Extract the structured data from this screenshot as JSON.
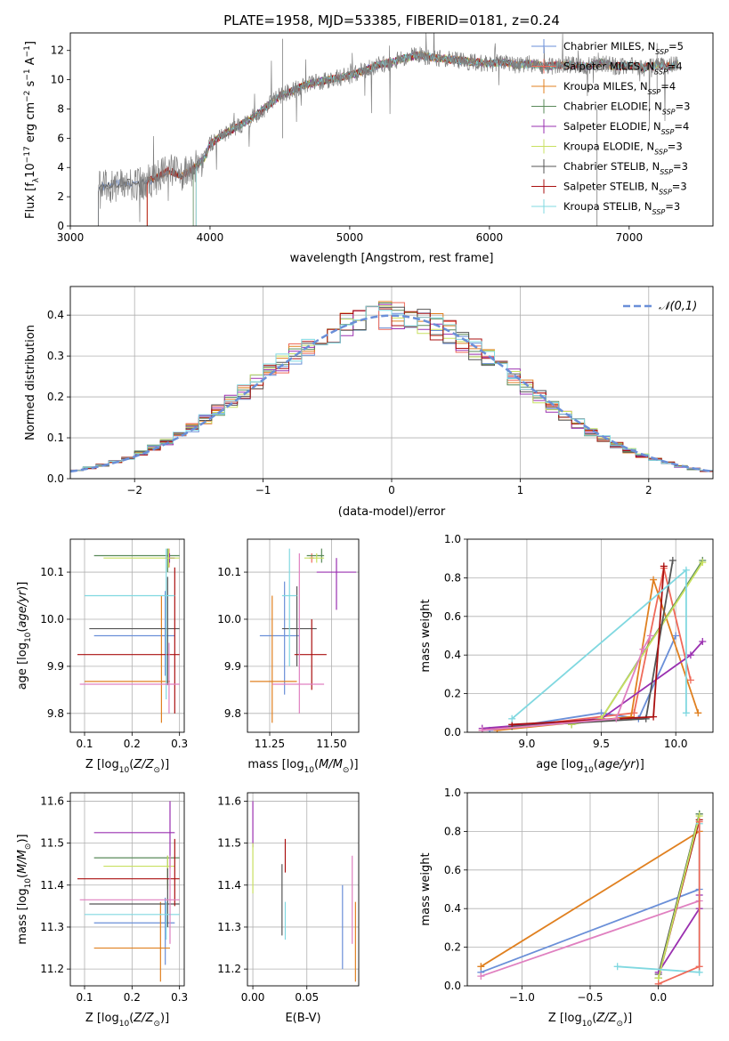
{
  "figure": {
    "title": "PLATE=1958, MJD=53385, FIBERID=0181, z=0.24"
  },
  "colors": {
    "chabrier_miles": "#6a8fd8",
    "salpeter_miles": "#ef6a5a",
    "kroupa_miles": "#e08020",
    "chabrier_elodie": "#5a8a5a",
    "salpeter_elodie": "#9a30b0",
    "kroupa_elodie": "#c8e060",
    "chabrier_stelib": "#555555",
    "salpeter_stelib": "#aa1010",
    "kroupa_stelib": "#80d8e0",
    "pink": "#e080c0",
    "data": "#808080"
  },
  "chart_data": [
    {
      "id": "spectrum",
      "type": "line",
      "xlabel": "wavelength [Angstrom, rest frame]",
      "ylabel": "Flux [f_λ 10^-17 erg cm^-2 s^-1 A^-1]",
      "xlim": [
        3000,
        7600
      ],
      "ylim": [
        0,
        13.2
      ],
      "xticks": [
        "3000",
        "4000",
        "5000",
        "6000",
        "7000"
      ],
      "yticks": [
        "0",
        "2",
        "4",
        "6",
        "8",
        "10",
        "12"
      ],
      "legend_placement": "right",
      "legend": [
        {
          "label": "Chabrier MILES, N",
          "sub": "SSP",
          "tail": "=5",
          "color_key": "chabrier_miles"
        },
        {
          "label": "Salpeter MILES, N",
          "sub": "SSP",
          "tail": "=4",
          "color_key": "salpeter_miles"
        },
        {
          "label": "Kroupa MILES, N",
          "sub": "SSP",
          "tail": "=4",
          "color_key": "kroupa_miles"
        },
        {
          "label": "Chabrier ELODIE, N",
          "sub": "SSP",
          "tail": "=3",
          "color_key": "chabrier_elodie"
        },
        {
          "label": "Salpeter ELODIE, N",
          "sub": "SSP",
          "tail": "=4",
          "color_key": "salpeter_elodie"
        },
        {
          "label": "Kroupa ELODIE, N",
          "sub": "SSP",
          "tail": "=3",
          "color_key": "kroupa_elodie"
        },
        {
          "label": "Chabrier STELIB, N",
          "sub": "SSP",
          "tail": "=3",
          "color_key": "chabrier_stelib"
        },
        {
          "label": "Salpeter STELIB, N",
          "sub": "SSP",
          "tail": "=3",
          "color_key": "salpeter_stelib"
        },
        {
          "label": "Kroupa STELIB, N",
          "sub": "SSP",
          "tail": "=3",
          "color_key": "kroupa_stelib"
        }
      ],
      "continuum": {
        "x": [
          3200,
          3300,
          3400,
          3500,
          3600,
          3700,
          3800,
          3900,
          3960,
          4000,
          4100,
          4200,
          4300,
          4400,
          4500,
          4600,
          4700,
          4800,
          4900,
          5000,
          5100,
          5200,
          5300,
          5400,
          5500,
          5600,
          5700,
          5800,
          5900,
          6000,
          6100,
          6200,
          6300,
          6400,
          6500,
          6600,
          6700,
          6800,
          6900,
          7000,
          7100,
          7200,
          7300,
          7350
        ],
        "y": [
          2.6,
          2.8,
          3.0,
          2.9,
          3.2,
          3.8,
          3.4,
          4.1,
          4.6,
          5.6,
          6.3,
          6.8,
          7.4,
          8.1,
          8.9,
          9.3,
          9.7,
          9.9,
          10.1,
          10.3,
          10.6,
          11.0,
          11.2,
          11.5,
          11.7,
          11.5,
          11.4,
          11.3,
          11.2,
          11.1,
          11.2,
          11.0,
          11.1,
          10.9,
          11.0,
          11.0,
          10.9,
          11.2,
          10.9,
          11.0,
          10.8,
          11.0,
          10.9,
          11.1
        ]
      },
      "model_starts": [
        3200,
        3550,
        3550,
        3880,
        3900,
        3900,
        3200,
        3550,
        3900
      ]
    },
    {
      "id": "residuals",
      "type": "line",
      "xlabel": "(data-model)/error",
      "ylabel": "Normed distribution",
      "xlim": [
        -2.5,
        2.5
      ],
      "ylim": [
        0,
        0.47
      ],
      "xticks": [
        "−2",
        "−1",
        "0",
        "1",
        "2"
      ],
      "yticks": [
        "0.0",
        "0.1",
        "0.2",
        "0.3",
        "0.4"
      ],
      "grid": true,
      "legend_placement": "top-right",
      "gaussian_label": "𝒩(0,1)",
      "gaussian_color": "#6a8fd8"
    },
    {
      "id": "age_vs_Z",
      "type": "scatter",
      "xlabel": "Z [log₁₀(Z/Z☉)]",
      "ylabel": "age  [log₁₀(age/yr)]",
      "xlim": [
        0.07,
        0.31
      ],
      "ylim": [
        9.76,
        10.17
      ],
      "xticks": [
        "0.1",
        "0.2",
        "0.3"
      ],
      "yticks": [
        "9.8",
        "9.9",
        "10.0",
        "10.1"
      ],
      "grid": true,
      "points": [
        {
          "c": "chabrier_miles",
          "x": 0.27,
          "xerr": [
            0.12,
            0.29
          ],
          "y": 9.965,
          "yerr": [
            9.88,
            10.06
          ]
        },
        {
          "c": "salpeter_miles",
          "x": 0.278,
          "xerr": [
            0.27,
            0.29
          ],
          "y": 10.13,
          "yerr": [
            10.11,
            10.15
          ]
        },
        {
          "c": "kroupa_miles",
          "x": 0.262,
          "xerr": [
            0.1,
            0.28
          ],
          "y": 9.868,
          "yerr": [
            9.78,
            10.05
          ]
        },
        {
          "c": "chabrier_elodie",
          "x": 0.275,
          "xerr": [
            0.12,
            0.3
          ],
          "y": 10.135,
          "yerr": [
            10.1,
            10.15
          ]
        },
        {
          "c": "salpeter_elodie",
          "x": 0.279,
          "xerr": [
            0.27,
            0.29
          ],
          "y": 10.13,
          "yerr": [
            10.12,
            10.14
          ]
        },
        {
          "c": "kroupa_elodie",
          "x": 0.277,
          "xerr": [
            0.14,
            0.3
          ],
          "y": 10.13,
          "yerr": [
            10.11,
            10.15
          ]
        },
        {
          "c": "chabrier_stelib",
          "x": 0.275,
          "xerr": [
            0.11,
            0.3
          ],
          "y": 9.98,
          "yerr": [
            9.86,
            10.09
          ]
        },
        {
          "c": "salpeter_stelib",
          "x": 0.29,
          "xerr": [
            0.085,
            0.3
          ],
          "y": 9.925,
          "yerr": [
            9.8,
            10.11
          ]
        },
        {
          "c": "kroupa_stelib",
          "x": 0.272,
          "xerr": [
            0.1,
            0.29
          ],
          "y": 10.05,
          "yerr": [
            9.83,
            10.15
          ]
        },
        {
          "c": "pink",
          "x": 0.278,
          "xerr": [
            0.09,
            0.3
          ],
          "y": 9.862,
          "yerr": [
            9.8,
            9.95
          ]
        }
      ]
    },
    {
      "id": "age_vs_mass",
      "type": "scatter",
      "xlabel": "mass [log₁₀(M/M☉)]",
      "ylabel": "",
      "xlim": [
        11.16,
        11.61
      ],
      "ylim": [
        9.76,
        10.17
      ],
      "xticks": [
        "11.25",
        "11.50"
      ],
      "yticks": [
        "9.8",
        "9.9",
        "10.0",
        "10.1"
      ],
      "grid": true,
      "points": [
        {
          "c": "chabrier_miles",
          "x": 11.31,
          "xerr": [
            11.21,
            11.37
          ],
          "y": 9.965,
          "yerr": [
            9.84,
            10.08
          ]
        },
        {
          "c": "salpeter_miles",
          "x": 11.42,
          "xerr": [
            11.41,
            11.43
          ],
          "y": 10.13,
          "yerr": [
            10.12,
            10.14
          ]
        },
        {
          "c": "kroupa_miles",
          "x": 11.26,
          "xerr": [
            11.17,
            11.36
          ],
          "y": 9.868,
          "yerr": [
            9.78,
            10.05
          ]
        },
        {
          "c": "chabrier_elodie",
          "x": 11.46,
          "xerr": [
            11.4,
            11.47
          ],
          "y": 10.135,
          "yerr": [
            10.12,
            10.15
          ]
        },
        {
          "c": "salpeter_elodie",
          "x": 11.52,
          "xerr": [
            11.44,
            11.6
          ],
          "y": 10.1,
          "yerr": [
            10.02,
            10.13
          ]
        },
        {
          "c": "kroupa_elodie",
          "x": 11.44,
          "xerr": [
            11.39,
            11.47
          ],
          "y": 10.13,
          "yerr": [
            10.12,
            10.14
          ]
        },
        {
          "c": "chabrier_stelib",
          "x": 11.36,
          "xerr": [
            11.3,
            11.44
          ],
          "y": 9.98,
          "yerr": [
            9.9,
            10.07
          ]
        },
        {
          "c": "salpeter_stelib",
          "x": 11.42,
          "xerr": [
            11.35,
            11.48
          ],
          "y": 9.925,
          "yerr": [
            9.85,
            10.0
          ]
        },
        {
          "c": "kroupa_stelib",
          "x": 11.33,
          "xerr": [
            11.3,
            11.36
          ],
          "y": 10.05,
          "yerr": [
            9.9,
            10.15
          ]
        },
        {
          "c": "pink",
          "x": 11.37,
          "xerr": [
            11.26,
            11.47
          ],
          "y": 9.862,
          "yerr": [
            9.8,
            10.14
          ]
        }
      ]
    },
    {
      "id": "weight_vs_age",
      "type": "line",
      "xlabel": "age  [log₁₀(age/yr)]",
      "ylabel": "mass weight",
      "xlim": [
        8.6,
        10.25
      ],
      "ylim": [
        0,
        1.0
      ],
      "xticks": [
        "9.0",
        "9.5",
        "10.0"
      ],
      "yticks": [
        "0.0",
        "0.2",
        "0.4",
        "0.6",
        "0.8",
        "1.0"
      ],
      "grid": true,
      "series": [
        {
          "c": "chabrier_miles",
          "x": [
            8.75,
            9.5,
            9.75,
            10.0
          ],
          "y": [
            0.01,
            0.1,
            0.07,
            0.5
          ]
        },
        {
          "c": "salpeter_miles",
          "x": [
            8.7,
            9.72,
            9.92,
            10.1
          ],
          "y": [
            0.01,
            0.1,
            0.85,
            0.27
          ]
        },
        {
          "c": "kroupa_miles",
          "x": [
            8.8,
            9.7,
            9.85,
            10.15
          ],
          "y": [
            0.01,
            0.08,
            0.79,
            0.1
          ]
        },
        {
          "c": "chabrier_elodie",
          "x": [
            9.3,
            9.5,
            10.18
          ],
          "y": [
            0.04,
            0.07,
            0.89
          ]
        },
        {
          "c": "salpeter_elodie",
          "x": [
            8.7,
            9.5,
            10.1,
            10.18
          ],
          "y": [
            0.02,
            0.07,
            0.4,
            0.47
          ]
        },
        {
          "c": "kroupa_elodie",
          "x": [
            9.3,
            9.5,
            10.18
          ],
          "y": [
            0.04,
            0.07,
            0.88
          ]
        },
        {
          "c": "chabrier_stelib",
          "x": [
            8.9,
            9.8,
            9.98
          ],
          "y": [
            0.03,
            0.07,
            0.89
          ]
        },
        {
          "c": "salpeter_stelib",
          "x": [
            8.9,
            9.85,
            9.92
          ],
          "y": [
            0.04,
            0.08,
            0.86
          ]
        },
        {
          "c": "kroupa_stelib",
          "x": [
            8.9,
            10.07,
            10.07
          ],
          "y": [
            0.07,
            0.84,
            0.1
          ]
        },
        {
          "c": "pink",
          "x": [
            8.7,
            9.6,
            9.78,
            9.83
          ],
          "y": [
            0.01,
            0.07,
            0.43,
            0.5
          ]
        }
      ]
    },
    {
      "id": "mass_vs_Z",
      "type": "scatter",
      "xlabel": "Z [log₁₀(Z/Z☉)]",
      "ylabel": "mass [log₁₀(M/M☉)]",
      "xlim": [
        0.07,
        0.31
      ],
      "ylim": [
        11.16,
        11.62
      ],
      "xticks": [
        "0.1",
        "0.2",
        "0.3"
      ],
      "yticks": [
        "11.2",
        "11.3",
        "11.4",
        "11.5",
        "11.6"
      ],
      "grid": true,
      "points": [
        {
          "c": "chabrier_miles",
          "x": 0.27,
          "xerr": [
            0.12,
            0.29
          ],
          "y": 11.31,
          "yerr": [
            11.21,
            11.37
          ]
        },
        {
          "c": "kroupa_miles",
          "x": 0.26,
          "xerr": [
            0.12,
            0.28
          ],
          "y": 11.25,
          "yerr": [
            11.17,
            11.36
          ]
        },
        {
          "c": "chabrier_elodie",
          "x": 0.275,
          "xerr": [
            0.12,
            0.3
          ],
          "y": 11.465,
          "yerr": [
            11.4,
            11.47
          ]
        },
        {
          "c": "salpeter_elodie",
          "x": 0.28,
          "xerr": [
            0.12,
            0.29
          ],
          "y": 11.525,
          "yerr": [
            11.44,
            11.6
          ]
        },
        {
          "c": "kroupa_elodie",
          "x": 0.275,
          "xerr": [
            0.14,
            0.29
          ],
          "y": 11.445,
          "yerr": [
            11.39,
            11.47
          ]
        },
        {
          "c": "chabrier_stelib",
          "x": 0.275,
          "xerr": [
            0.11,
            0.3
          ],
          "y": 11.355,
          "yerr": [
            11.3,
            11.44
          ]
        },
        {
          "c": "salpeter_stelib",
          "x": 0.29,
          "xerr": [
            0.085,
            0.3
          ],
          "y": 11.415,
          "yerr": [
            11.35,
            11.51
          ]
        },
        {
          "c": "kroupa_stelib",
          "x": 0.272,
          "xerr": [
            0.1,
            0.3
          ],
          "y": 11.33,
          "yerr": [
            11.27,
            11.36
          ]
        },
        {
          "c": "pink",
          "x": 0.28,
          "xerr": [
            0.09,
            0.3
          ],
          "y": 11.365,
          "yerr": [
            11.26,
            11.47
          ]
        }
      ]
    },
    {
      "id": "mass_vs_ebv",
      "type": "scatter",
      "xlabel": "E(B-V)",
      "ylabel": "",
      "xlim": [
        -0.005,
        0.098
      ],
      "ylim": [
        11.16,
        11.62
      ],
      "xticks": [
        "0.00",
        "0.05"
      ],
      "yticks": [
        "11.2",
        "11.3",
        "11.4",
        "11.5",
        "11.6"
      ],
      "grid": true,
      "points": [
        {
          "c": "chabrier_miles",
          "x": 0.083,
          "yerr": [
            11.2,
            11.4
          ]
        },
        {
          "c": "kroupa_miles",
          "x": 0.095,
          "yerr": [
            11.17,
            11.36
          ]
        },
        {
          "c": "salpeter_elodie",
          "x": 0.0,
          "yerr": [
            11.49,
            11.6
          ]
        },
        {
          "c": "kroupa_elodie",
          "x": 0.0,
          "yerr": [
            11.38,
            11.5
          ]
        },
        {
          "c": "chabrier_stelib",
          "x": 0.027,
          "yerr": [
            11.28,
            11.45
          ]
        },
        {
          "c": "salpeter_stelib",
          "x": 0.03,
          "yerr": [
            11.43,
            11.51
          ]
        },
        {
          "c": "kroupa_stelib",
          "x": 0.03,
          "yerr": [
            11.27,
            11.36
          ]
        },
        {
          "c": "pink",
          "x": 0.092,
          "yerr": [
            11.26,
            11.47
          ]
        }
      ]
    },
    {
      "id": "weight_vs_Z",
      "type": "line",
      "xlabel": "Z [log₁₀(Z/Z☉)]",
      "ylabel": "mass weight",
      "xlim": [
        -1.4,
        0.4
      ],
      "ylim": [
        0,
        1.0
      ],
      "xticks": [
        "−1.0",
        "−0.5",
        "0.0"
      ],
      "yticks": [
        "0.0",
        "0.2",
        "0.4",
        "0.6",
        "0.8",
        "1.0"
      ],
      "grid": true,
      "series": [
        {
          "c": "chabrier_miles",
          "x": [
            -1.3,
            0.3
          ],
          "y": [
            0.07,
            0.5
          ]
        },
        {
          "c": "kroupa_miles",
          "x": [
            -1.3,
            0.3
          ],
          "y": [
            0.1,
            0.8
          ]
        },
        {
          "c": "pink",
          "x": [
            -1.3,
            0.3
          ],
          "y": [
            0.05,
            0.44
          ]
        },
        {
          "c": "chabrier_stelib",
          "x": [
            0.0,
            0.3
          ],
          "y": [
            0.06,
            0.89
          ]
        },
        {
          "c": "salpeter_stelib",
          "x": [
            0.0,
            0.3
          ],
          "y": [
            0.04,
            0.86
          ]
        },
        {
          "c": "salpeter_elodie",
          "x": [
            0.0,
            0.3,
            0.3
          ],
          "y": [
            0.07,
            0.4,
            0.47
          ]
        },
        {
          "c": "chabrier_elodie",
          "x": [
            0.0,
            0.3
          ],
          "y": [
            0.04,
            0.89
          ]
        },
        {
          "c": "kroupa_elodie",
          "x": [
            0.0,
            0.3
          ],
          "y": [
            0.04,
            0.88
          ]
        },
        {
          "c": "kroupa_stelib",
          "x": [
            -0.3,
            0.3,
            0.3
          ],
          "y": [
            0.1,
            0.07,
            0.84
          ]
        },
        {
          "c": "salpeter_miles",
          "x": [
            0.0,
            0.3,
            0.3
          ],
          "y": [
            0.01,
            0.1,
            0.85
          ]
        }
      ]
    }
  ]
}
